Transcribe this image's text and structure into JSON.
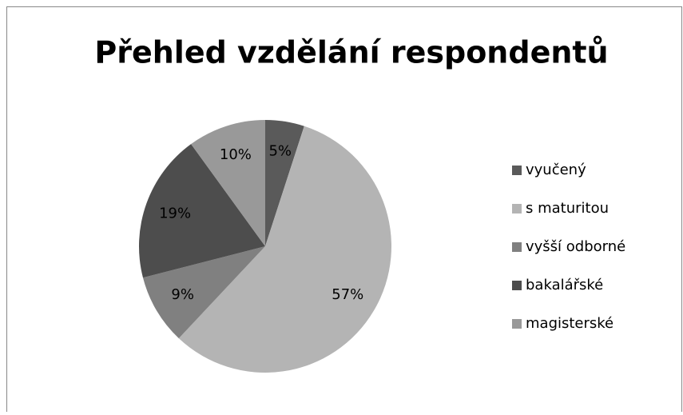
{
  "chart_data": {
    "type": "pie",
    "title": "Přehled vzdělání respondentů",
    "categories": [
      "vyučený",
      "s maturitou",
      "vyšší odborné",
      "bakalářské",
      "magisterské"
    ],
    "values": [
      5,
      57,
      9,
      19,
      10
    ],
    "value_labels": [
      "5%",
      "57%",
      "9%",
      "19%",
      "10%"
    ],
    "colors": [
      "#5a5a5a",
      "#b4b4b4",
      "#808080",
      "#4d4d4d",
      "#999999"
    ],
    "legend": "right"
  }
}
